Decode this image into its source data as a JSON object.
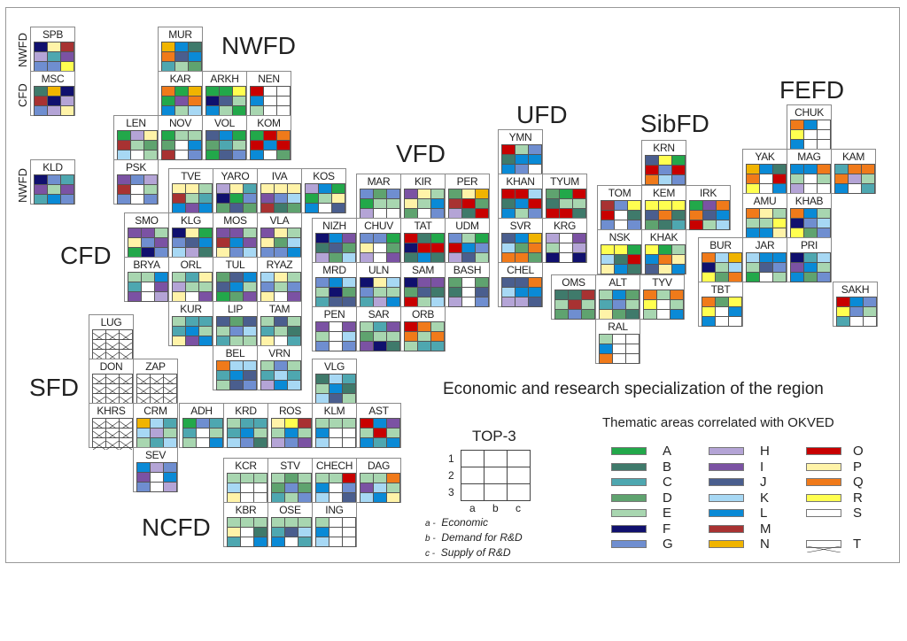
{
  "title": "Economic and research specialization of the region",
  "districts": [
    {
      "code": "NWFD",
      "label": "NWFD"
    },
    {
      "code": "CFD",
      "label": "CFD"
    },
    {
      "code": "VFD",
      "label": "VFD"
    },
    {
      "code": "UFD",
      "label": "UFD"
    },
    {
      "code": "SibFD",
      "label": "SibFD"
    },
    {
      "code": "FEFD",
      "label": "FEFD"
    },
    {
      "code": "SFD",
      "label": "SFD"
    },
    {
      "code": "NCFD",
      "label": "NCFD"
    }
  ],
  "side_labels": [
    "NWFD",
    "CFD",
    "NWFD"
  ],
  "legend": {
    "title": "Thematic areas correlated with OKVED",
    "items": [
      {
        "code": "A",
        "color": "#22a84a"
      },
      {
        "code": "B",
        "color": "#3f7a6b"
      },
      {
        "code": "C",
        "color": "#4ea7b0"
      },
      {
        "code": "D",
        "color": "#5fa36f"
      },
      {
        "code": "E",
        "color": "#a8d6b0"
      },
      {
        "code": "F",
        "color": "#10106e"
      },
      {
        "code": "G",
        "color": "#6f8ed0"
      },
      {
        "code": "H",
        "color": "#b4a4d6"
      },
      {
        "code": "I",
        "color": "#7b52a3"
      },
      {
        "code": "J",
        "color": "#4a5e8e"
      },
      {
        "code": "K",
        "color": "#a7d8f4"
      },
      {
        "code": "L",
        "color": "#0a8ad6"
      },
      {
        "code": "M",
        "color": "#a83232"
      },
      {
        "code": "N",
        "color": "#f0b400"
      },
      {
        "code": "O",
        "color": "#c80000"
      },
      {
        "code": "P",
        "color": "#fff3a8"
      },
      {
        "code": "Q",
        "color": "#f07a1a"
      },
      {
        "code": "R",
        "color": "#ffff50"
      },
      {
        "code": "S",
        "color": "#ffffff"
      },
      {
        "code": "T",
        "color": "crossed"
      }
    ]
  },
  "top3": {
    "title": "TOP-3",
    "rows": [
      "1",
      "2",
      "3"
    ],
    "cols": [
      "a",
      "b",
      "c"
    ],
    "descriptions": [
      {
        "key": "a -",
        "text": "Economic"
      },
      {
        "key": "b -",
        "text": "Demand for R&D"
      },
      {
        "key": "c -",
        "text": "Supply of R&D"
      }
    ]
  },
  "regions": [
    {
      "code": "SPB",
      "cells": "FPMHCIGGR"
    },
    {
      "code": "MSC",
      "cells": "BNFMFHGHP"
    },
    {
      "code": "KLD",
      "cells": "FGCIEICLG"
    },
    {
      "code": "MUR",
      "cells": "NLBQJLCED"
    },
    {
      "code": "KAR",
      "cells": "QANAIQLEK"
    },
    {
      "code": "ARKH",
      "cells": "AARFJELEA"
    },
    {
      "code": "NEN",
      "cells": "OSSLSSESS"
    },
    {
      "code": "LEN",
      "cells": "AHPMEDKSE"
    },
    {
      "code": "NOV",
      "cells": "AEEDSLMSG"
    },
    {
      "code": "VOL",
      "cells": "JLADCEAJG"
    },
    {
      "code": "KOM",
      "cells": "AOQOLOLSD"
    },
    {
      "code": "PSK",
      "cells": "IGHMSEGSG"
    },
    {
      "code": "TVE",
      "cells": "PPEMECLIL"
    },
    {
      "code": "YARO",
      "cells": "HPCFAGDJD"
    },
    {
      "code": "IVA",
      "cells": "PPPIGKMBD"
    },
    {
      "code": "KOS",
      "cells": "HLAAEPLSJ"
    },
    {
      "code": "SMO",
      "cells": "IIEPGIAFG"
    },
    {
      "code": "KLG",
      "cells": "FPAGJLKHB"
    },
    {
      "code": "MOS",
      "cells": "IIEMLIPGK"
    },
    {
      "code": "VLA",
      "cells": "IPEPDKGGL"
    },
    {
      "code": "BRYA",
      "cells": "EELCSIISH"
    },
    {
      "code": "ORL",
      "cells": "ECPHEEPSI"
    },
    {
      "code": "TUL",
      "cells": "DJLJLEADI"
    },
    {
      "code": "RYAZ",
      "cells": "KPEGEGPSI"
    },
    {
      "code": "KUR",
      "cells": "ECCCLEPIL"
    },
    {
      "code": "LIP",
      "cells": "JDJEGKCEE"
    },
    {
      "code": "TAM",
      "cells": "EJECEBPSC"
    },
    {
      "code": "BEL",
      "cells": "QKKCLJEJG"
    },
    {
      "code": "VRN",
      "cells": "EGECKCHLK"
    },
    {
      "code": "MAR",
      "cells": "GDGAEEHSS"
    },
    {
      "code": "KIR",
      "cells": "IPEPELDSG"
    },
    {
      "code": "PER",
      "cells": "DPNMODHBO"
    },
    {
      "code": "NIZH",
      "cells": "FLIBJDHDK"
    },
    {
      "code": "CHUV",
      "cells": "GGAPSDHSI"
    },
    {
      "code": "TAT",
      "cells": "OBAFOOBLB"
    },
    {
      "code": "UDM",
      "cells": "GEAOLGHJE"
    },
    {
      "code": "MRD",
      "cells": "GLKEFDCJJ"
    },
    {
      "code": "ULN",
      "cells": "FPKGEECHL"
    },
    {
      "code": "SAM",
      "cells": "FIIDJBOEK"
    },
    {
      "code": "BASH",
      "cells": "DSDBSJHSG"
    },
    {
      "code": "PEN",
      "cells": "ISIESKGSG"
    },
    {
      "code": "SAR",
      "cells": "ECIDEEIFB"
    },
    {
      "code": "ORB",
      "cells": "OQEQEQECC"
    },
    {
      "code": "VLG",
      "cells": "BKCELBKJE"
    },
    {
      "code": "LUG",
      "cells": "TTTTTTTTT"
    },
    {
      "code": "DON",
      "cells": "TTTTTTTTT"
    },
    {
      "code": "ZAP",
      "cells": "TTTTTTTTT"
    },
    {
      "code": "KHRS",
      "cells": "TTTTTTTTT"
    },
    {
      "code": "CRM",
      "cells": "NKCKHEECK"
    },
    {
      "code": "ADH",
      "cells": "AGCCSEESL"
    },
    {
      "code": "KRD",
      "cells": "ECCCLEKGB"
    },
    {
      "code": "ROS",
      "cells": "PRMELEHGI"
    },
    {
      "code": "KLM",
      "cells": "EEELSSKSS"
    },
    {
      "code": "AST",
      "cells": "OLIEOELCL"
    },
    {
      "code": "SEV",
      "cells": "LHGISLGSH"
    },
    {
      "code": "KCR",
      "cells": "EEEKSSPSS"
    },
    {
      "code": "STV",
      "cells": "EDEDGDCEG"
    },
    {
      "code": "CHECH",
      "cells": "EEOLSGKSJ"
    },
    {
      "code": "DAG",
      "cells": "EEQIKEKLP"
    },
    {
      "code": "KBR",
      "cells": "EEEPSBCSL"
    },
    {
      "code": "OSE",
      "cells": "EEECJKLSC"
    },
    {
      "code": "ING",
      "cells": "ESSLSSKSS"
    },
    {
      "code": "YMN",
      "cells": "OEGBLLLGS"
    },
    {
      "code": "KHAN",
      "cells": "OOKBLOLEG"
    },
    {
      "code": "TYUM",
      "cells": "DAOBEEOOB"
    },
    {
      "code": "SVR",
      "cells": "JLNKDQQQD"
    },
    {
      "code": "KRG",
      "cells": "HSIESHFSF"
    },
    {
      "code": "CHEL",
      "cells": "JJQKLLHHJ"
    },
    {
      "code": "OMS",
      "cells": "BBMEMEDGD"
    },
    {
      "code": "KRN",
      "cells": "JRAOGOQKG"
    },
    {
      "code": "TOM",
      "cells": "MGROSBGSG"
    },
    {
      "code": "KEM",
      "cells": "RRRJQBDBC"
    },
    {
      "code": "IRK",
      "cells": "AIQQJLOEK"
    },
    {
      "code": "NSK",
      "cells": "RRAKBOPLB"
    },
    {
      "code": "KHAK",
      "cells": "RAELQPJPL"
    },
    {
      "code": "ALT",
      "cells": "ELDCGEPDB"
    },
    {
      "code": "TYV",
      "cells": "QEQRSEESL"
    },
    {
      "code": "RAL",
      "cells": "ESSLSSQSS"
    },
    {
      "code": "CHUK",
      "cells": "QLSRSSLSS"
    },
    {
      "code": "YAK",
      "cells": "NLBQSORSL"
    },
    {
      "code": "MAG",
      "cells": "LLQESEHSS"
    },
    {
      "code": "KAM",
      "cells": "CQQQHELSC"
    },
    {
      "code": "AMU",
      "cells": "QPEEERLLP"
    },
    {
      "code": "KHAB",
      "cells": "QLEFGKRDG"
    },
    {
      "code": "BUR",
      "cells": "QKNFEKRDQ"
    },
    {
      "code": "JAR",
      "cells": "KLLEJGASE"
    },
    {
      "code": "PRI",
      "cells": "FCKILELDG"
    },
    {
      "code": "TBT",
      "cells": "QDRRSLLSS"
    },
    {
      "code": "SAKH",
      "cells": "OLGRGECSS"
    }
  ]
}
